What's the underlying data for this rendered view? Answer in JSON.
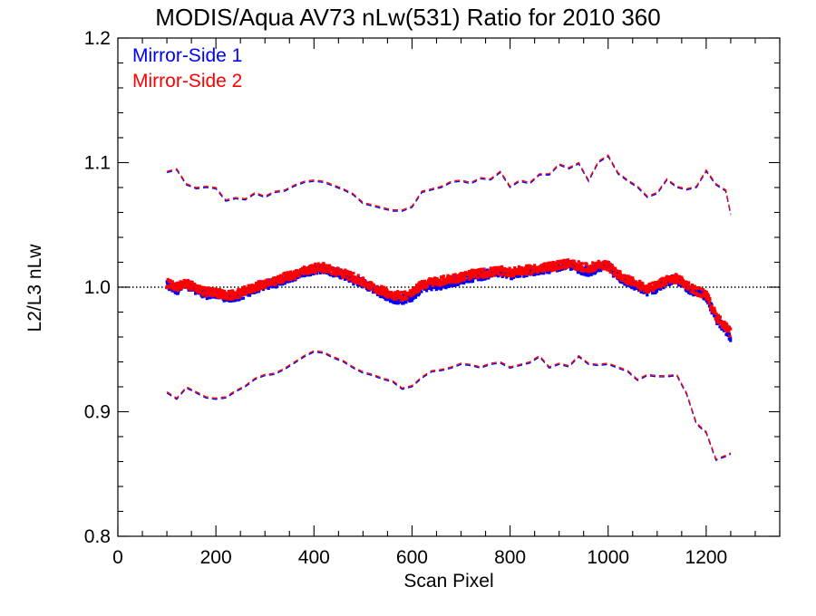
{
  "chart_data": {
    "type": "scatter",
    "title": "MODIS/Aqua AV73 nLw(531) Ratio for 2010 360",
    "xlabel": "Scan Pixel",
    "ylabel": "L2/L3 nLw",
    "xlim": [
      0,
      1350
    ],
    "ylim": [
      0.8,
      1.2
    ],
    "x_ticks": [
      0,
      200,
      400,
      600,
      800,
      1000,
      1200
    ],
    "x_tick_labels": [
      "0",
      "200",
      "400",
      "600",
      "800",
      "1000",
      "1200"
    ],
    "y_ticks": [
      0.8,
      0.9,
      1.0,
      1.1,
      1.2
    ],
    "y_tick_labels": [
      "0.8",
      "0.9",
      "1.0",
      "1.1",
      "1.2"
    ],
    "x_minor_step": 50,
    "y_minor_step": 0.02,
    "grid": false,
    "legend_position": "top-left",
    "reference_line": {
      "y": 1.0,
      "style": "dotted",
      "color": "#000000"
    },
    "series": [
      {
        "name": "Mirror-Side 1",
        "color": "#0000ff",
        "mean": {
          "x": [
            100,
            120,
            140,
            160,
            180,
            200,
            220,
            240,
            260,
            280,
            300,
            320,
            340,
            360,
            380,
            400,
            420,
            440,
            460,
            480,
            500,
            520,
            540,
            560,
            580,
            600,
            620,
            640,
            660,
            680,
            700,
            720,
            740,
            760,
            780,
            800,
            820,
            840,
            860,
            880,
            900,
            920,
            940,
            960,
            980,
            1000,
            1020,
            1040,
            1060,
            1080,
            1100,
            1120,
            1140,
            1160,
            1180,
            1200,
            1220,
            1240,
            1250
          ],
          "y": [
            1.001,
            0.998,
            1.002,
            0.998,
            0.994,
            0.995,
            0.992,
            0.992,
            0.995,
            0.999,
            1.002,
            1.003,
            1.006,
            1.009,
            1.012,
            1.014,
            1.015,
            1.012,
            1.01,
            1.006,
            1.003,
            0.999,
            0.995,
            0.991,
            0.99,
            0.992,
            1.0,
            1.001,
            1.002,
            1.004,
            1.006,
            1.008,
            1.009,
            1.011,
            1.012,
            1.01,
            1.011,
            1.012,
            1.014,
            1.015,
            1.017,
            1.018,
            1.015,
            1.012,
            1.016,
            1.017,
            1.008,
            1.004,
            1.0,
            0.997,
            0.999,
            1.005,
            1.006,
            1.0,
            0.996,
            0.993,
            0.975,
            0.965,
            0.96
          ]
        },
        "upper": {
          "x": [
            100,
            120,
            140,
            160,
            180,
            200,
            220,
            240,
            260,
            280,
            300,
            320,
            340,
            360,
            380,
            400,
            420,
            440,
            460,
            480,
            500,
            520,
            540,
            560,
            580,
            600,
            620,
            640,
            660,
            680,
            700,
            720,
            740,
            760,
            780,
            800,
            820,
            840,
            860,
            880,
            900,
            920,
            940,
            960,
            980,
            1000,
            1020,
            1040,
            1060,
            1080,
            1100,
            1120,
            1140,
            1160,
            1180,
            1200,
            1220,
            1240,
            1250
          ],
          "y": [
            1.092,
            1.094,
            1.082,
            1.079,
            1.08,
            1.079,
            1.069,
            1.071,
            1.07,
            1.075,
            1.072,
            1.076,
            1.077,
            1.081,
            1.084,
            1.085,
            1.084,
            1.081,
            1.078,
            1.074,
            1.067,
            1.065,
            1.063,
            1.061,
            1.061,
            1.064,
            1.076,
            1.078,
            1.08,
            1.084,
            1.085,
            1.083,
            1.087,
            1.086,
            1.092,
            1.08,
            1.085,
            1.083,
            1.09,
            1.09,
            1.098,
            1.095,
            1.099,
            1.085,
            1.1,
            1.105,
            1.091,
            1.085,
            1.08,
            1.072,
            1.075,
            1.086,
            1.08,
            1.078,
            1.08,
            1.093,
            1.082,
            1.077,
            1.058
          ]
        },
        "lower": {
          "x": [
            100,
            120,
            140,
            160,
            180,
            200,
            220,
            240,
            260,
            280,
            300,
            320,
            340,
            360,
            380,
            400,
            420,
            440,
            460,
            480,
            500,
            520,
            540,
            560,
            580,
            600,
            620,
            640,
            660,
            680,
            700,
            720,
            740,
            760,
            780,
            800,
            820,
            840,
            860,
            880,
            900,
            920,
            940,
            960,
            980,
            1000,
            1020,
            1040,
            1060,
            1080,
            1100,
            1120,
            1140,
            1160,
            1180,
            1200,
            1220,
            1240,
            1250
          ],
          "y": [
            0.915,
            0.91,
            0.919,
            0.915,
            0.911,
            0.91,
            0.911,
            0.916,
            0.92,
            0.926,
            0.929,
            0.93,
            0.934,
            0.939,
            0.944,
            0.948,
            0.947,
            0.943,
            0.94,
            0.935,
            0.931,
            0.929,
            0.926,
            0.924,
            0.918,
            0.92,
            0.927,
            0.932,
            0.933,
            0.935,
            0.938,
            0.937,
            0.935,
            0.938,
            0.939,
            0.935,
            0.937,
            0.939,
            0.944,
            0.935,
            0.938,
            0.936,
            0.944,
            0.938,
            0.937,
            0.938,
            0.935,
            0.932,
            0.925,
            0.929,
            0.928,
            0.928,
            0.929,
            0.914,
            0.89,
            0.883,
            0.861,
            0.864,
            0.866
          ]
        }
      },
      {
        "name": "Mirror-Side 2",
        "color": "#ff0000",
        "mean": {
          "x": [
            100,
            120,
            140,
            160,
            180,
            200,
            220,
            240,
            260,
            280,
            300,
            320,
            340,
            360,
            380,
            400,
            420,
            440,
            460,
            480,
            500,
            520,
            540,
            560,
            580,
            600,
            620,
            640,
            660,
            680,
            700,
            720,
            740,
            760,
            780,
            800,
            820,
            840,
            860,
            880,
            900,
            920,
            940,
            960,
            980,
            1000,
            1020,
            1040,
            1060,
            1080,
            1100,
            1120,
            1140,
            1160,
            1180,
            1200,
            1220,
            1240,
            1250
          ],
          "y": [
            1.003,
            1.0,
            1.003,
            0.999,
            0.996,
            0.996,
            0.993,
            0.994,
            0.997,
            1.0,
            1.003,
            1.004,
            1.008,
            1.01,
            1.013,
            1.015,
            1.016,
            1.013,
            1.011,
            1.008,
            1.004,
            1.0,
            0.997,
            0.994,
            0.993,
            0.995,
            1.002,
            1.004,
            1.005,
            1.007,
            1.008,
            1.01,
            1.011,
            1.012,
            1.013,
            1.012,
            1.013,
            1.014,
            1.015,
            1.016,
            1.018,
            1.019,
            1.017,
            1.015,
            1.018,
            1.017,
            1.01,
            1.006,
            1.002,
            0.999,
            1.001,
            1.006,
            1.007,
            1.002,
            0.997,
            0.994,
            0.977,
            0.968,
            0.963
          ]
        },
        "upper": {
          "x": [
            100,
            120,
            140,
            160,
            180,
            200,
            220,
            240,
            260,
            280,
            300,
            320,
            340,
            360,
            380,
            400,
            420,
            440,
            460,
            480,
            500,
            520,
            540,
            560,
            580,
            600,
            620,
            640,
            660,
            680,
            700,
            720,
            740,
            760,
            780,
            800,
            820,
            840,
            860,
            880,
            900,
            920,
            940,
            960,
            980,
            1000,
            1020,
            1040,
            1060,
            1080,
            1100,
            1120,
            1140,
            1160,
            1180,
            1200,
            1220,
            1240,
            1250
          ],
          "y": [
            1.093,
            1.095,
            1.083,
            1.08,
            1.081,
            1.08,
            1.07,
            1.072,
            1.071,
            1.076,
            1.073,
            1.077,
            1.078,
            1.082,
            1.085,
            1.086,
            1.085,
            1.082,
            1.079,
            1.075,
            1.068,
            1.066,
            1.064,
            1.062,
            1.062,
            1.065,
            1.077,
            1.079,
            1.081,
            1.085,
            1.086,
            1.084,
            1.088,
            1.087,
            1.093,
            1.081,
            1.086,
            1.084,
            1.091,
            1.091,
            1.099,
            1.096,
            1.1,
            1.086,
            1.101,
            1.106,
            1.092,
            1.086,
            1.081,
            1.073,
            1.076,
            1.087,
            1.081,
            1.079,
            1.081,
            1.094,
            1.083,
            1.078,
            1.059
          ]
        },
        "lower": {
          "x": [
            100,
            120,
            140,
            160,
            180,
            200,
            220,
            240,
            260,
            280,
            300,
            320,
            340,
            360,
            380,
            400,
            420,
            440,
            460,
            480,
            500,
            520,
            540,
            560,
            580,
            600,
            620,
            640,
            660,
            680,
            700,
            720,
            740,
            760,
            780,
            800,
            820,
            840,
            860,
            880,
            900,
            920,
            940,
            960,
            980,
            1000,
            1020,
            1040,
            1060,
            1080,
            1100,
            1120,
            1140,
            1160,
            1180,
            1200,
            1220,
            1240,
            1250
          ],
          "y": [
            0.916,
            0.911,
            0.92,
            0.916,
            0.912,
            0.911,
            0.912,
            0.917,
            0.921,
            0.927,
            0.93,
            0.931,
            0.935,
            0.94,
            0.945,
            0.949,
            0.948,
            0.944,
            0.941,
            0.936,
            0.932,
            0.93,
            0.927,
            0.925,
            0.919,
            0.921,
            0.928,
            0.933,
            0.934,
            0.936,
            0.939,
            0.938,
            0.936,
            0.939,
            0.94,
            0.936,
            0.938,
            0.94,
            0.945,
            0.936,
            0.939,
            0.937,
            0.945,
            0.939,
            0.938,
            0.939,
            0.936,
            0.933,
            0.926,
            0.93,
            0.929,
            0.929,
            0.93,
            0.915,
            0.891,
            0.884,
            0.862,
            0.865,
            0.867
          ]
        }
      }
    ]
  }
}
